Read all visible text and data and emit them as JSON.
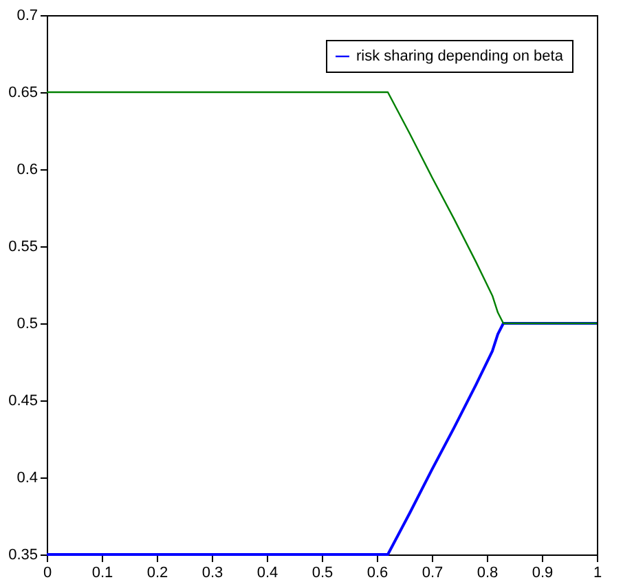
{
  "chart_data": {
    "type": "line",
    "xlim": [
      0,
      1
    ],
    "ylim": [
      0.35,
      0.7
    ],
    "xticks": [
      0,
      0.1,
      0.2,
      0.3,
      0.4,
      0.5,
      0.6,
      0.7,
      0.8,
      0.9,
      1
    ],
    "yticks": [
      0.35,
      0.4,
      0.45,
      0.5,
      0.55,
      0.6,
      0.65,
      0.7
    ],
    "grid": false,
    "legend": "top right",
    "marker": "none",
    "line_style": "solid",
    "series": [
      {
        "name": "risk sharing depending on beta",
        "color": "#0000ff",
        "x": [
          0,
          0.62,
          0.66,
          0.7,
          0.74,
          0.78,
          0.81,
          0.82,
          0.83,
          1
        ],
        "values": [
          0.35,
          0.35,
          0.377,
          0.405,
          0.432,
          0.46,
          0.482,
          0.493,
          0.5,
          0.5
        ]
      },
      {
        "color": "#008000",
        "x": [
          0,
          0.62,
          0.66,
          0.7,
          0.74,
          0.78,
          0.81,
          0.82,
          0.83,
          1
        ],
        "values": [
          0.65,
          0.65,
          0.623,
          0.595,
          0.568,
          0.54,
          0.518,
          0.507,
          0.5,
          0.5
        ]
      }
    ]
  }
}
